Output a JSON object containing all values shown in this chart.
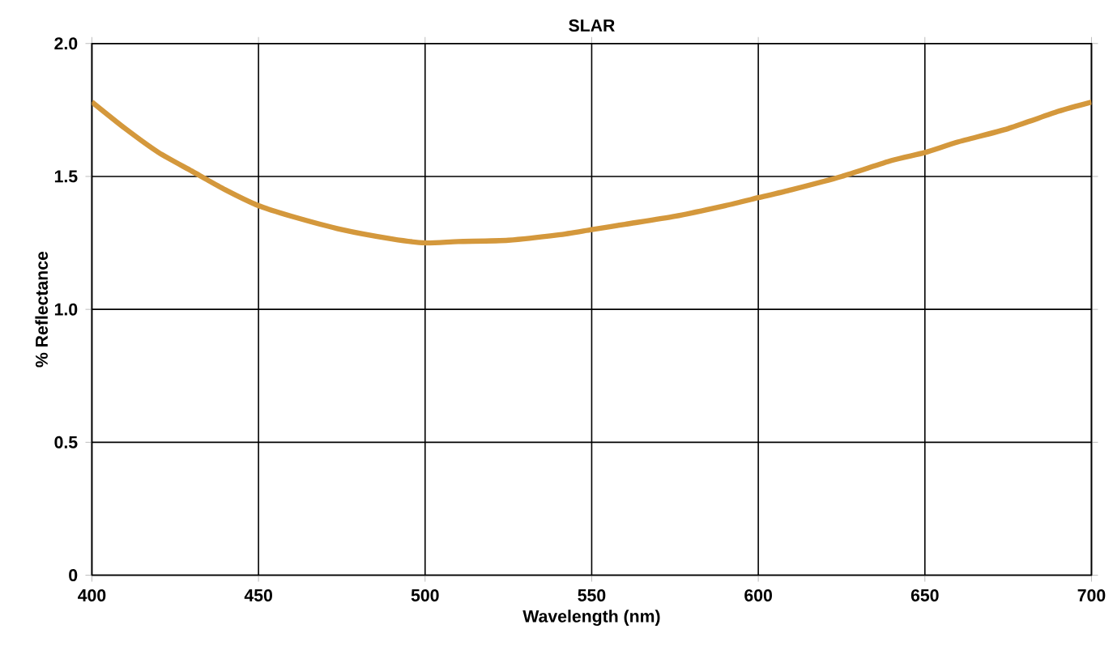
{
  "chart_data": {
    "type": "line",
    "title": "SLAR",
    "xlabel": "Wavelength (nm)",
    "ylabel": "% Reflectance",
    "x": [
      400,
      410,
      420,
      430,
      440,
      450,
      460,
      475,
      490,
      500,
      510,
      525,
      540,
      550,
      560,
      575,
      590,
      600,
      610,
      625,
      640,
      650,
      660,
      675,
      690,
      700
    ],
    "series": [
      {
        "color": "#d4983c",
        "values": [
          1.78,
          1.68,
          1.59,
          1.52,
          1.45,
          1.39,
          1.35,
          1.3,
          1.265,
          1.25,
          1.255,
          1.26,
          1.28,
          1.3,
          1.32,
          1.35,
          1.39,
          1.42,
          1.45,
          1.5,
          1.56,
          1.59,
          1.63,
          1.68,
          1.745,
          1.78
        ]
      }
    ],
    "xlim": [
      400,
      700
    ],
    "ylim": [
      0,
      2.0
    ],
    "xticks": [
      400,
      450,
      500,
      550,
      600,
      650,
      700
    ],
    "yticks": [
      0,
      {
        "value": 0.5,
        "label": "0.5"
      },
      {
        "value": 1.0,
        "label": "1.0"
      },
      {
        "value": 1.5,
        "label": "1.5"
      },
      {
        "value": 2.0,
        "label": "2.0"
      }
    ],
    "grid": true,
    "marker": "none",
    "line_style": "solid"
  }
}
